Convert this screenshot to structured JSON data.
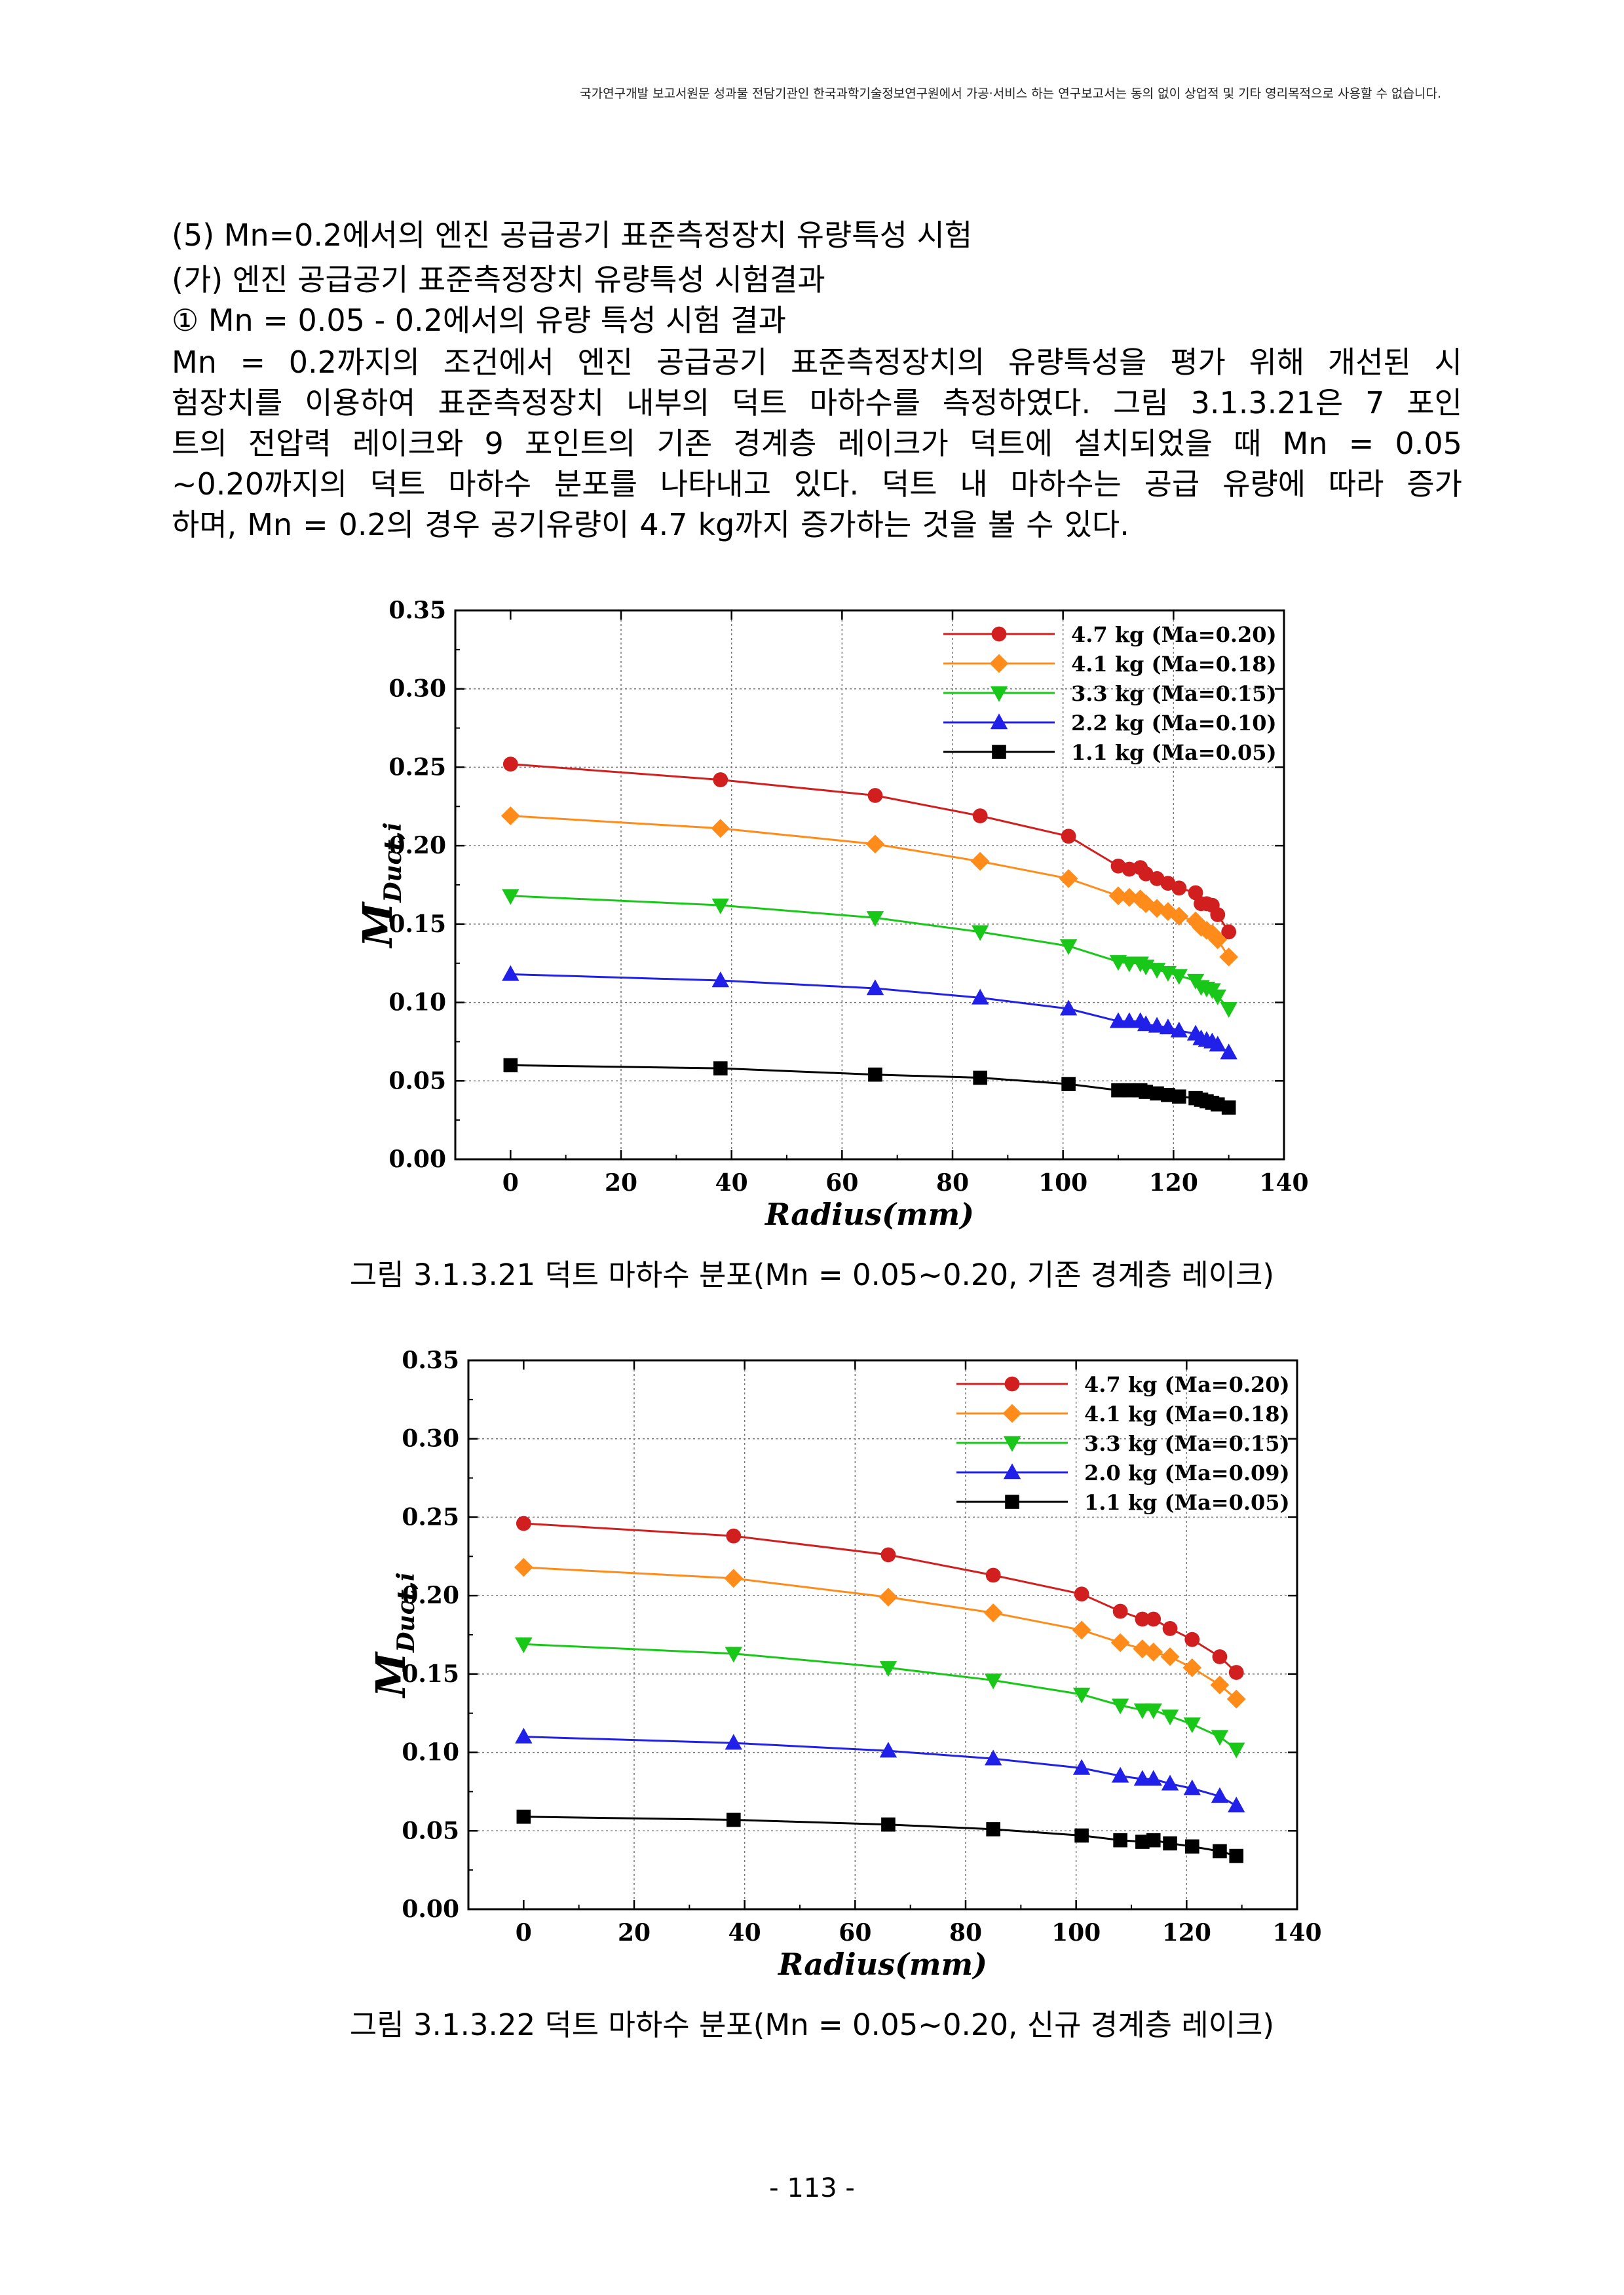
{
  "notice": "국가연구개발 보고서원문 성과물 전담기관인 한국과학기술정보연구원에서 가공·서비스 하는 연구보고서는 동의 없이 상업적 및 기타 영리목적으로 사용할 수 없습니다.",
  "headings": {
    "h1": "(5) Mn=0.2에서의 엔진 공급공기 표준측정장치 유량특성 시험",
    "h2": "(가) 엔진 공급공기 표준측정장치 유량특성 시험결과",
    "h3": "① Mn = 0.05 - 0.2에서의 유량 특성 시험 결과"
  },
  "paragraph": [
    " Mn = 0.2까지의 조건에서 엔진 공급공기 표준측정장치의 유량특성을 평가 위해 개선된 시",
    "험장치를 이용하여 표준측정장치 내부의 덕트 마하수를 측정하였다. 그림 3.1.3.21은 7 포인",
    "트의 전압력 레이크와 9 포인트의 기존 경계층 레이크가 덕트에 설치되었을 때 Mn = 0.05",
    "~0.20까지의 덕트 마하수 분포를 나타내고 있다. 덕트 내 마하수는 공급 유량에 따라 증가",
    "하며, Mn = 0.2의 경우 공기유량이 4.7 kg까지 증가하는 것을 볼 수 있다."
  ],
  "captions": {
    "fig1": "그림 3.1.3.21 덕트 마하수 분포(Mn = 0.05~0.20, 기존 경계층 레이크)",
    "fig2": "그림 3.1.3.22 덕트 마하수 분포(Mn = 0.05~0.20, 신규 경계층 레이크)"
  },
  "page_number": "- 113 -",
  "chart_data": [
    {
      "type": "line",
      "title": "",
      "xlabel": "Radius(mm)",
      "ylabel": "M",
      "ylabel_sub": "Duct,i",
      "xlim": [
        -10,
        140
      ],
      "ylim": [
        0,
        0.35
      ],
      "xticks": [
        "0",
        "20",
        "40",
        "60",
        "80",
        "100",
        "120",
        "140"
      ],
      "yticks": [
        "0.00",
        "0.05",
        "0.10",
        "0.15",
        "0.20",
        "0.25",
        "0.30",
        "0.35"
      ],
      "grid": true,
      "legend": "top-right",
      "series": [
        {
          "name": "4.7 kg (Ma=0.20)",
          "color": "#d11f1f",
          "marker": "circle",
          "x": [
            0,
            38,
            66,
            85,
            101,
            110,
            112,
            114,
            115,
            117,
            119,
            121,
            124,
            125,
            126,
            127,
            128,
            130
          ],
          "y": [
            0.252,
            0.242,
            0.232,
            0.219,
            0.206,
            0.187,
            0.185,
            0.186,
            0.182,
            0.179,
            0.176,
            0.173,
            0.17,
            0.163,
            0.163,
            0.162,
            0.156,
            0.145
          ]
        },
        {
          "name": "4.1 kg (Ma=0.18)",
          "color": "#ff8c1a",
          "marker": "diamond",
          "x": [
            0,
            38,
            66,
            85,
            101,
            110,
            112,
            114,
            115,
            117,
            119,
            121,
            124,
            125,
            126,
            127,
            128,
            130
          ],
          "y": [
            0.219,
            0.211,
            0.201,
            0.19,
            0.179,
            0.168,
            0.167,
            0.166,
            0.163,
            0.16,
            0.158,
            0.155,
            0.152,
            0.148,
            0.146,
            0.144,
            0.14,
            0.129
          ]
        },
        {
          "name": "3.3 kg (Ma=0.15)",
          "color": "#19c719",
          "marker": "triangle-down",
          "x": [
            0,
            38,
            66,
            85,
            101,
            110,
            112,
            114,
            115,
            117,
            119,
            121,
            124,
            125,
            126,
            127,
            128,
            130
          ],
          "y": [
            0.168,
            0.162,
            0.154,
            0.145,
            0.136,
            0.126,
            0.125,
            0.125,
            0.123,
            0.121,
            0.119,
            0.117,
            0.114,
            0.11,
            0.109,
            0.108,
            0.104,
            0.096
          ]
        },
        {
          "name": "2.2 kg (Ma=0.10)",
          "color": "#2020e8",
          "marker": "triangle-up",
          "x": [
            0,
            38,
            66,
            85,
            101,
            110,
            112,
            114,
            115,
            117,
            119,
            121,
            124,
            125,
            126,
            127,
            128,
            130
          ],
          "y": [
            0.118,
            0.114,
            0.109,
            0.103,
            0.096,
            0.088,
            0.088,
            0.088,
            0.086,
            0.085,
            0.084,
            0.082,
            0.08,
            0.077,
            0.076,
            0.075,
            0.073,
            0.068
          ]
        },
        {
          "name": "1.1 kg (Ma=0.05)",
          "color": "#000000",
          "marker": "square",
          "x": [
            0,
            38,
            66,
            85,
            101,
            110,
            112,
            114,
            115,
            117,
            119,
            121,
            124,
            125,
            126,
            127,
            128,
            130
          ],
          "y": [
            0.06,
            0.058,
            0.054,
            0.052,
            0.048,
            0.044,
            0.044,
            0.044,
            0.043,
            0.042,
            0.041,
            0.04,
            0.039,
            0.038,
            0.037,
            0.036,
            0.035,
            0.033
          ]
        }
      ]
    },
    {
      "type": "line",
      "title": "",
      "xlabel": "Radius(mm)",
      "ylabel": "M",
      "ylabel_sub": "Duct,i",
      "xlim": [
        -10,
        140
      ],
      "ylim": [
        0,
        0.35
      ],
      "xticks": [
        "0",
        "20",
        "40",
        "60",
        "80",
        "100",
        "120",
        "140"
      ],
      "yticks": [
        "0.00",
        "0.05",
        "0.10",
        "0.15",
        "0.20",
        "0.25",
        "0.30",
        "0.35"
      ],
      "grid": true,
      "legend": "top-right",
      "series": [
        {
          "name": "4.7 kg (Ma=0.20)",
          "color": "#d11f1f",
          "marker": "circle",
          "x": [
            0,
            38,
            66,
            85,
            101,
            108,
            112,
            114,
            117,
            121,
            126,
            129
          ],
          "y": [
            0.246,
            0.238,
            0.226,
            0.213,
            0.201,
            0.19,
            0.185,
            0.185,
            0.179,
            0.172,
            0.161,
            0.151
          ]
        },
        {
          "name": "4.1 kg (Ma=0.18)",
          "color": "#ff8c1a",
          "marker": "diamond",
          "x": [
            0,
            38,
            66,
            85,
            101,
            108,
            112,
            114,
            117,
            121,
            126,
            129
          ],
          "y": [
            0.218,
            0.211,
            0.199,
            0.189,
            0.178,
            0.17,
            0.166,
            0.164,
            0.161,
            0.154,
            0.143,
            0.134
          ]
        },
        {
          "name": "3.3 kg (Ma=0.15)",
          "color": "#19c719",
          "marker": "triangle-down",
          "x": [
            0,
            38,
            66,
            85,
            101,
            108,
            112,
            114,
            117,
            121,
            126,
            129
          ],
          "y": [
            0.169,
            0.163,
            0.154,
            0.146,
            0.137,
            0.13,
            0.127,
            0.127,
            0.123,
            0.118,
            0.11,
            0.102
          ]
        },
        {
          "name": "2.0 kg (Ma=0.09)",
          "color": "#2020e8",
          "marker": "triangle-up",
          "x": [
            0,
            38,
            66,
            85,
            101,
            108,
            112,
            114,
            117,
            121,
            126,
            129
          ],
          "y": [
            0.11,
            0.106,
            0.101,
            0.096,
            0.09,
            0.085,
            0.083,
            0.083,
            0.08,
            0.077,
            0.072,
            0.066
          ]
        },
        {
          "name": "1.1 kg (Ma=0.05)",
          "color": "#000000",
          "marker": "square",
          "x": [
            0,
            38,
            66,
            85,
            101,
            108,
            112,
            114,
            117,
            121,
            126,
            129
          ],
          "y": [
            0.059,
            0.057,
            0.054,
            0.051,
            0.047,
            0.044,
            0.043,
            0.044,
            0.042,
            0.04,
            0.037,
            0.034
          ]
        }
      ]
    }
  ]
}
